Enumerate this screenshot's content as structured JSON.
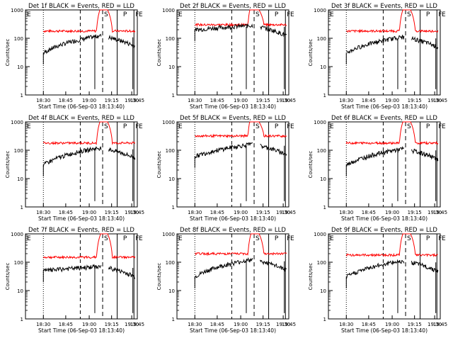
{
  "figure": {
    "xlabel": "Start Time (06-Sep-03 18:13:40)",
    "ylabel": "Counts/sec",
    "x_ticks": [
      "18:30",
      "18:45",
      "19:00",
      "19:15",
      "19:30",
      "19:45"
    ],
    "y_ticks": [
      "1000",
      "100",
      "10",
      "1"
    ],
    "markers": [
      "E",
      "S",
      "P",
      "F",
      "E"
    ],
    "colors": {
      "events": "#000000",
      "lld": "#ff0000",
      "axis": "#000000",
      "background": "#ffffff"
    }
  },
  "chart_data": [
    {
      "type": "line",
      "title": "Det 1f BLACK = Events, RED = LLD",
      "xlabel": "Start Time (06-Sep-03 18:13:40)",
      "ylabel": "Counts/sec",
      "yscale": "log",
      "ylim": [
        1,
        1000
      ],
      "series": [
        {
          "name": "Events",
          "color": "#000000",
          "level_min": 30,
          "level_max": 120
        },
        {
          "name": "LLD",
          "color": "#ff0000",
          "level": 180,
          "peak": 1000
        }
      ]
    },
    {
      "type": "line",
      "title": "Det 2f BLACK = Events, RED = LLD",
      "xlabel": "Start Time (06-Sep-03 18:13:40)",
      "ylabel": "Counts/sec",
      "yscale": "log",
      "ylim": [
        1,
        1000
      ],
      "series": [
        {
          "name": "Events",
          "color": "#000000",
          "level_min": 200,
          "level_max": 280
        },
        {
          "name": "LLD",
          "color": "#ff0000",
          "level": 300,
          "peak": 1000
        }
      ]
    },
    {
      "type": "line",
      "title": "Det 3f BLACK = Events, RED = LLD",
      "xlabel": "Start Time (06-Sep-03 18:13:40)",
      "ylabel": "Counts/sec",
      "yscale": "log",
      "ylim": [
        1,
        1000
      ],
      "series": [
        {
          "name": "Events",
          "color": "#000000",
          "level_min": 30,
          "level_max": 110
        },
        {
          "name": "LLD",
          "color": "#ff0000",
          "level": 180,
          "peak": 1000
        }
      ]
    },
    {
      "type": "line",
      "title": "Det 4f BLACK = Events, RED = LLD",
      "xlabel": "Start Time (06-Sep-03 18:13:40)",
      "ylabel": "Counts/sec",
      "yscale": "log",
      "ylim": [
        1,
        1000
      ],
      "series": [
        {
          "name": "Events",
          "color": "#000000",
          "level_min": 30,
          "level_max": 120
        },
        {
          "name": "LLD",
          "color": "#ff0000",
          "level": 180,
          "peak": 1000
        }
      ]
    },
    {
      "type": "line",
      "title": "Det 5f BLACK = Events, RED = LLD",
      "xlabel": "Start Time (06-Sep-03 18:13:40)",
      "ylabel": "Counts/sec",
      "yscale": "log",
      "ylim": [
        1,
        1000
      ],
      "series": [
        {
          "name": "Events",
          "color": "#000000",
          "level_min": 60,
          "level_max": 160
        },
        {
          "name": "LLD",
          "color": "#ff0000",
          "level": 320,
          "peak": 1000
        }
      ]
    },
    {
      "type": "line",
      "title": "Det 6f BLACK = Events, RED = LLD",
      "xlabel": "Start Time (06-Sep-03 18:13:40)",
      "ylabel": "Counts/sec",
      "yscale": "log",
      "ylim": [
        1,
        1000
      ],
      "series": [
        {
          "name": "Events",
          "color": "#000000",
          "level_min": 30,
          "level_max": 110
        },
        {
          "name": "LLD",
          "color": "#ff0000",
          "level": 180,
          "peak": 1000
        }
      ]
    },
    {
      "type": "line",
      "title": "Det 7f BLACK = Events, RED = LLD",
      "xlabel": "Start Time (06-Sep-03 18:13:40)",
      "ylabel": "Counts/sec",
      "yscale": "log",
      "ylim": [
        1,
        1000
      ],
      "series": [
        {
          "name": "Events",
          "color": "#000000",
          "level_min": 50,
          "level_max": 70
        },
        {
          "name": "LLD",
          "color": "#ff0000",
          "level": 150,
          "peak": 1000
        }
      ]
    },
    {
      "type": "line",
      "title": "Det 8f BLACK = Events, RED = LLD",
      "xlabel": "Start Time (06-Sep-03 18:13:40)",
      "ylabel": "Counts/sec",
      "yscale": "log",
      "ylim": [
        1,
        1000
      ],
      "series": [
        {
          "name": "Events",
          "color": "#000000",
          "level_min": 30,
          "level_max": 120
        },
        {
          "name": "LLD",
          "color": "#ff0000",
          "level": 200,
          "peak": 1000
        }
      ]
    },
    {
      "type": "line",
      "title": "Det 9f BLACK = Events, RED = LLD",
      "xlabel": "Start Time (06-Sep-03 18:13:40)",
      "ylabel": "Counts/sec",
      "yscale": "log",
      "ylim": [
        1,
        1000
      ],
      "series": [
        {
          "name": "Events",
          "color": "#000000",
          "level_min": 30,
          "level_max": 110
        },
        {
          "name": "LLD",
          "color": "#ff0000",
          "level": 180,
          "peak": 1000
        }
      ]
    }
  ]
}
